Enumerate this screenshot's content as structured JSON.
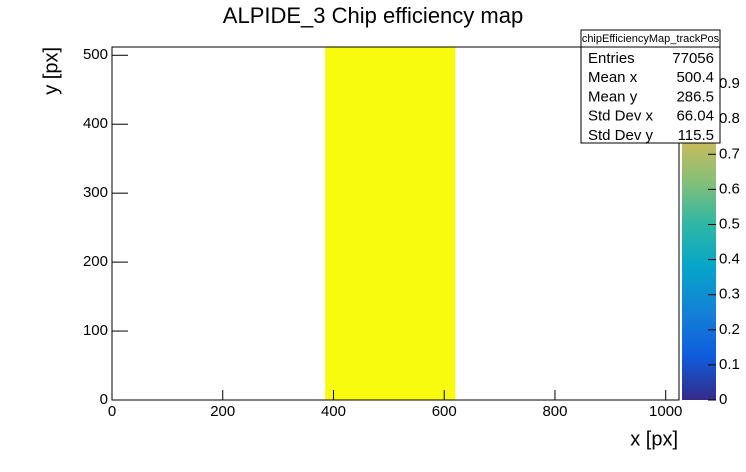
{
  "chart_data": {
    "type": "heatmap",
    "title": "ALPIDE_3 Chip efficiency map",
    "x_label": "x [px]",
    "y_label": "y [px]",
    "x_bins": [
      385,
      620
    ],
    "y_bins": [
      0,
      512
    ],
    "values": [
      [
        1
      ]
    ],
    "xlim": [
      0,
      1024
    ],
    "ylim": [
      0,
      512
    ],
    "xticks": [
      0,
      200,
      400,
      600,
      800,
      1000
    ],
    "yticks": [
      0,
      100,
      200,
      300,
      400,
      500
    ],
    "zlim": [
      0,
      1
    ],
    "zticks": [
      0,
      0.1,
      0.2,
      0.3,
      0.4,
      0.5,
      0.6,
      0.7,
      0.8,
      0.9
    ],
    "colors": [
      "#352a87",
      "#0f5cdd",
      "#1481d6",
      "#06a4ca",
      "#2eb7a4",
      "#87bf77",
      "#d1bb59",
      "#fec832",
      "#f9fb0e"
    ],
    "stats": {
      "title": "chipEfficiencyMap_trackPos",
      "rows": [
        [
          "Entries",
          77056
        ],
        [
          "Mean x",
          500.4
        ],
        [
          "Mean y",
          286.5
        ],
        [
          "Std Dev x",
          66.04
        ],
        [
          "Std Dev y",
          115.5
        ]
      ]
    }
  }
}
